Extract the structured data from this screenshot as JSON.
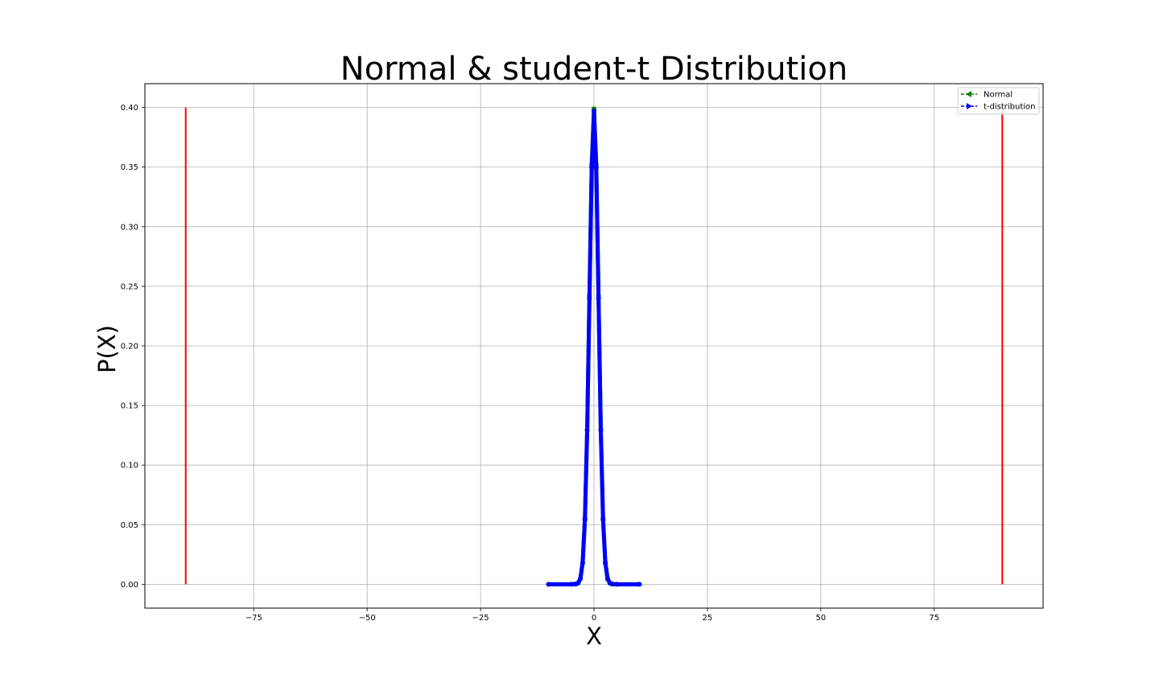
{
  "chart_data": {
    "type": "line",
    "title": "Normal & student-t Distribution",
    "xlabel": "X",
    "ylabel": "P(X)",
    "xlim": [
      -99,
      99
    ],
    "ylim": [
      -0.02,
      0.42
    ],
    "xticks": [
      -75,
      -50,
      -25,
      0,
      25,
      50,
      75
    ],
    "xtick_labels": [
      "−75",
      "−50",
      "−25",
      "0",
      "25",
      "50",
      "75"
    ],
    "yticks": [
      0.0,
      0.05,
      0.1,
      0.15,
      0.2,
      0.25,
      0.3,
      0.35,
      0.4
    ],
    "ytick_labels": [
      "0.00",
      "0.05",
      "0.10",
      "0.15",
      "0.20",
      "0.25",
      "0.30",
      "0.35",
      "0.40"
    ],
    "grid": true,
    "legend_position": "top-right",
    "series": [
      {
        "name": "Normal",
        "color": "#008000",
        "marker": "triangle-left",
        "linestyle": "dashed",
        "x": [
          -10,
          -5,
          -4,
          -3.5,
          -3,
          -2.5,
          -2,
          -1.5,
          -1,
          -0.5,
          0,
          0.5,
          1,
          1.5,
          2,
          2.5,
          3,
          3.5,
          4,
          5,
          10
        ],
        "y": [
          0.0,
          0.0,
          0.0001,
          0.0009,
          0.0044,
          0.0175,
          0.054,
          0.1295,
          0.242,
          0.3521,
          0.3989,
          0.3521,
          0.242,
          0.1295,
          0.054,
          0.0175,
          0.0044,
          0.0009,
          0.0001,
          0.0,
          0.0
        ]
      },
      {
        "name": "t-distribution",
        "color": "#0000ff",
        "marker": "triangle-right",
        "linestyle": "dashed",
        "x": [
          -10,
          -5,
          -4,
          -3.5,
          -3,
          -2.5,
          -2,
          -1.5,
          -1,
          -0.5,
          0,
          0.5,
          1,
          1.5,
          2,
          2.5,
          3,
          3.5,
          4,
          5,
          10
        ],
        "y": [
          0.0,
          0.0,
          0.0003,
          0.0011,
          0.005,
          0.0183,
          0.0549,
          0.1291,
          0.2401,
          0.3497,
          0.397,
          0.3497,
          0.2401,
          0.1291,
          0.0549,
          0.0183,
          0.005,
          0.0011,
          0.0003,
          0.0,
          0.0
        ]
      }
    ],
    "vlines": [
      {
        "x": -90,
        "ymin": 0.0,
        "ymax": 0.4,
        "color": "#ff0000"
      },
      {
        "x": 90,
        "ymin": 0.0,
        "ymax": 0.4,
        "color": "#ff0000"
      }
    ]
  }
}
